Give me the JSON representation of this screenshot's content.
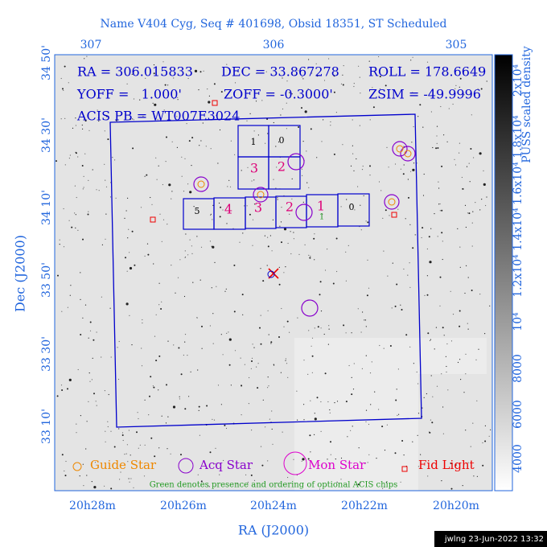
{
  "header": {
    "title": "Name V404 Cyg, Seq # 401698, Obsid 18351, ST Scheduled"
  },
  "info": {
    "ra": "RA = 306.015833",
    "dec": "DEC = 33.867278",
    "roll": "ROLL = 178.6649",
    "yoff": "YOFF =   1.000'",
    "zoff": "ZOFF = -0.3000'",
    "zsim": "ZSIM = -49.9996",
    "acis": "ACIS PB = WT007E3024"
  },
  "axes": {
    "x_label": "RA (J2000)",
    "y_label": "Dec (J2000)",
    "top_ticks": [
      "307",
      "306",
      "305"
    ],
    "bottom_ticks": [
      "20h28m",
      "20h26m",
      "20h24m",
      "20h22m",
      "20h20m"
    ],
    "left_ticks": [
      "34 50'",
      "34 30'",
      "34 10'",
      "33 50'",
      "33 30'",
      "33 10'"
    ]
  },
  "chips": {
    "acis_i": [
      "1",
      "0",
      "3",
      "2"
    ],
    "acis_s": [
      "5",
      "4",
      "3",
      "2",
      "1",
      "0"
    ],
    "optional": "1"
  },
  "legend": {
    "guide": "Guide Star",
    "acq": "Acq Star",
    "mon": "Mon Star",
    "fid": "Fid Light",
    "note": "Green denotes presence and ordering of optional ACIS chips"
  },
  "colorbar": {
    "title": "PUSS scaled density",
    "labels": [
      "4000",
      "6000",
      "8000",
      "10⁴",
      "1.2x10⁴",
      "1.4x10⁴",
      "1.6x10⁴",
      "1.8x10⁴",
      "2x10⁴"
    ]
  },
  "footer": "jwlng 23-Jun-2022 13:32"
}
